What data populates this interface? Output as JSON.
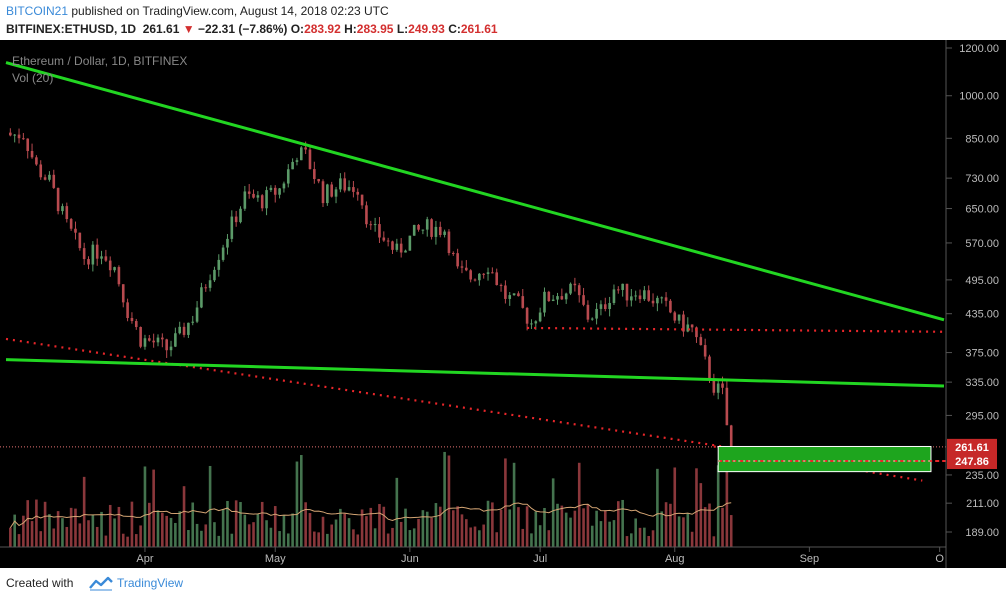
{
  "header": {
    "author": "BITCOIN21",
    "published": "published on TradingView.com, August 14, 2018 02:23 UTC",
    "symbol": "BITFINEX:ETHUSD, 1D",
    "last": "261.61",
    "change": "−22.31 (−7.86%)",
    "o_label": "O:",
    "o_value": "283.92",
    "h_label": "H:",
    "h_value": "283.95",
    "l_label": "L:",
    "l_value": "249.93",
    "c_label": "C:",
    "c_value": "261.61"
  },
  "chart_data": {
    "type": "candlestick",
    "title": "Ethereum / Dollar, 1D, BITFINEX",
    "volume_label": "Vol (20)",
    "y_scale": "log",
    "y_ticks": [
      189,
      211,
      235,
      261.61,
      295,
      335,
      375,
      435,
      495,
      570,
      650,
      730,
      850,
      1000,
      1200
    ],
    "x_ticks": [
      "Apr",
      "May",
      "Jun",
      "Jul",
      "Aug",
      "Sep",
      "O"
    ],
    "last_price_label": "261.61",
    "level_label": "247.86",
    "colors": {
      "up": "#5b9a68",
      "down": "#b84a4f",
      "trend": "#22d622",
      "dotted": "#e8262a",
      "zone": "#1ea51e",
      "bg": "#000000",
      "grid": "#3a3a3a",
      "axis_text": "#bbbbbb"
    },
    "price_path": [
      {
        "date": "2018-03-01",
        "price": 860
      },
      {
        "date": "2018-03-04",
        "price": 865
      },
      {
        "date": "2018-03-07",
        "price": 760
      },
      {
        "date": "2018-03-10",
        "price": 720
      },
      {
        "date": "2018-03-14",
        "price": 610
      },
      {
        "date": "2018-03-18",
        "price": 540
      },
      {
        "date": "2018-03-22",
        "price": 555
      },
      {
        "date": "2018-03-25",
        "price": 520
      },
      {
        "date": "2018-03-28",
        "price": 440
      },
      {
        "date": "2018-03-31",
        "price": 395
      },
      {
        "date": "2018-04-03",
        "price": 390
      },
      {
        "date": "2018-04-06",
        "price": 380
      },
      {
        "date": "2018-04-09",
        "price": 400
      },
      {
        "date": "2018-04-12",
        "price": 430
      },
      {
        "date": "2018-04-16",
        "price": 510
      },
      {
        "date": "2018-04-20",
        "price": 590
      },
      {
        "date": "2018-04-24",
        "price": 680
      },
      {
        "date": "2018-04-28",
        "price": 670
      },
      {
        "date": "2018-05-02",
        "price": 700
      },
      {
        "date": "2018-05-06",
        "price": 805
      },
      {
        "date": "2018-05-08",
        "price": 795
      },
      {
        "date": "2018-05-12",
        "price": 685
      },
      {
        "date": "2018-05-16",
        "price": 710
      },
      {
        "date": "2018-05-20",
        "price": 705
      },
      {
        "date": "2018-05-23",
        "price": 600
      },
      {
        "date": "2018-05-26",
        "price": 580
      },
      {
        "date": "2018-05-29",
        "price": 550
      },
      {
        "date": "2018-06-02",
        "price": 590
      },
      {
        "date": "2018-06-05",
        "price": 605
      },
      {
        "date": "2018-06-09",
        "price": 600
      },
      {
        "date": "2018-06-12",
        "price": 510
      },
      {
        "date": "2018-06-15",
        "price": 500
      },
      {
        "date": "2018-06-19",
        "price": 525
      },
      {
        "date": "2018-06-23",
        "price": 465
      },
      {
        "date": "2018-06-26",
        "price": 450
      },
      {
        "date": "2018-06-29",
        "price": 420
      },
      {
        "date": "2018-07-02",
        "price": 460
      },
      {
        "date": "2018-07-05",
        "price": 470
      },
      {
        "date": "2018-07-09",
        "price": 475
      },
      {
        "date": "2018-07-12",
        "price": 430
      },
      {
        "date": "2018-07-15",
        "price": 440
      },
      {
        "date": "2018-07-18",
        "price": 480
      },
      {
        "date": "2018-07-21",
        "price": 470
      },
      {
        "date": "2018-07-24",
        "price": 475
      },
      {
        "date": "2018-07-27",
        "price": 460
      },
      {
        "date": "2018-07-30",
        "price": 445
      },
      {
        "date": "2018-08-02",
        "price": 420
      },
      {
        "date": "2018-08-05",
        "price": 410
      },
      {
        "date": "2018-08-08",
        "price": 360
      },
      {
        "date": "2018-08-10",
        "price": 330
      },
      {
        "date": "2018-08-12",
        "price": 320
      },
      {
        "date": "2018-08-13",
        "price": 284
      },
      {
        "date": "2018-08-14",
        "price": 261.61
      }
    ],
    "trendlines": [
      {
        "name": "upper trendline",
        "points": [
          {
            "date": "2018-02-28",
            "price": 1135
          },
          {
            "date": "2018-10-02",
            "price": 425
          }
        ]
      },
      {
        "name": "lower trendline",
        "points": [
          {
            "date": "2018-02-28",
            "price": 365
          },
          {
            "date": "2018-10-02",
            "price": 330
          }
        ]
      }
    ],
    "dotted_lines": [
      {
        "points": [
          {
            "date": "2018-02-28",
            "price": 395
          },
          {
            "date": "2018-08-12",
            "price": 262
          }
        ]
      },
      {
        "points": [
          {
            "date": "2018-06-28",
            "price": 412
          },
          {
            "date": "2018-10-02",
            "price": 406
          }
        ]
      },
      {
        "points": [
          {
            "date": "2018-08-10",
            "price": 262
          },
          {
            "date": "2018-09-27",
            "price": 230
          }
        ]
      }
    ],
    "target_zone": {
      "date_from": "2018-08-11",
      "date_to": "2018-09-29",
      "price_low": 238,
      "price_high": 262
    },
    "target_zone_level": 247.86
  },
  "footer": {
    "created_with": "Created with",
    "brand": "TradingView"
  }
}
